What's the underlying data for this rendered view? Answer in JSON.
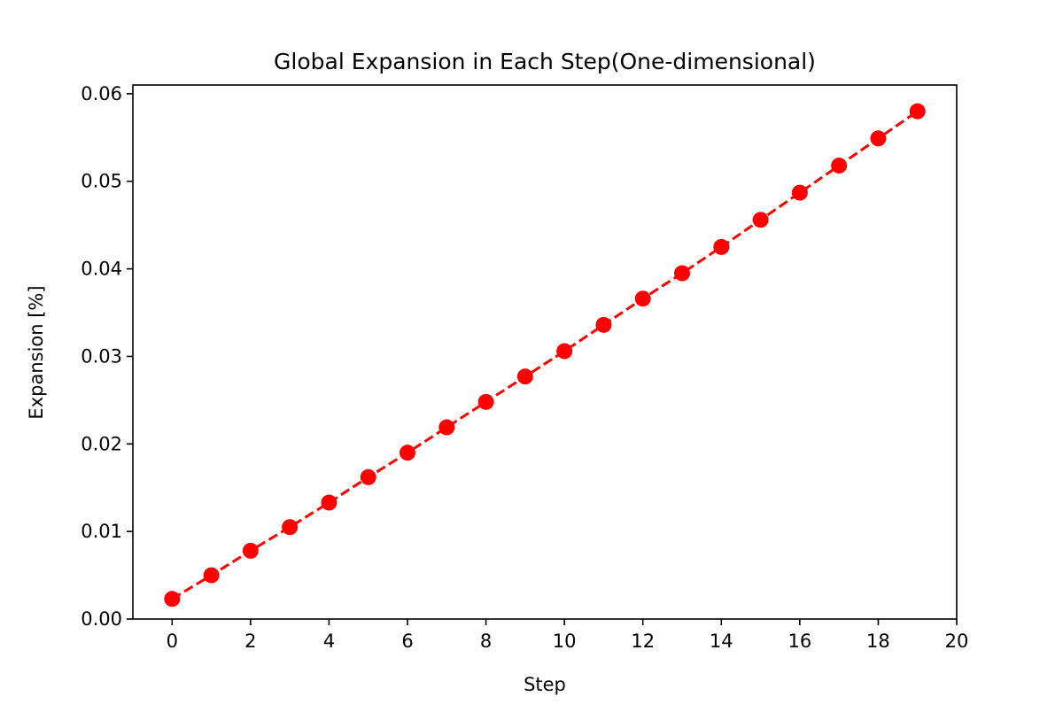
{
  "chart_data": {
    "type": "line",
    "title": "Global Expansion in Each Step(One-dimensional)",
    "xlabel": "Step",
    "ylabel": "Expansion [%]",
    "xlim": [
      -1,
      20
    ],
    "ylim": [
      0,
      0.061
    ],
    "xticks": [
      0,
      2,
      4,
      6,
      8,
      10,
      12,
      14,
      16,
      18,
      20
    ],
    "xtick_labels": [
      "0",
      "2",
      "4",
      "6",
      "8",
      "10",
      "12",
      "14",
      "16",
      "18",
      "20"
    ],
    "yticks": [
      0.0,
      0.01,
      0.02,
      0.03,
      0.04,
      0.05,
      0.06
    ],
    "ytick_labels": [
      "0.00",
      "0.01",
      "0.02",
      "0.03",
      "0.04",
      "0.05",
      "0.06"
    ],
    "grid": false,
    "legend": "none",
    "series": [
      {
        "color": "#ff0000",
        "line_style": "dashed",
        "marker": "circle",
        "x": [
          0,
          1,
          2,
          3,
          4,
          5,
          6,
          7,
          8,
          9,
          10,
          11,
          12,
          13,
          14,
          15,
          16,
          17,
          18,
          19
        ],
        "y": [
          0.0023,
          0.005,
          0.0078,
          0.0105,
          0.0133,
          0.0162,
          0.019,
          0.0219,
          0.0248,
          0.0277,
          0.0306,
          0.0336,
          0.0366,
          0.0395,
          0.0425,
          0.0456,
          0.0487,
          0.0518,
          0.0549,
          0.058
        ]
      }
    ]
  }
}
